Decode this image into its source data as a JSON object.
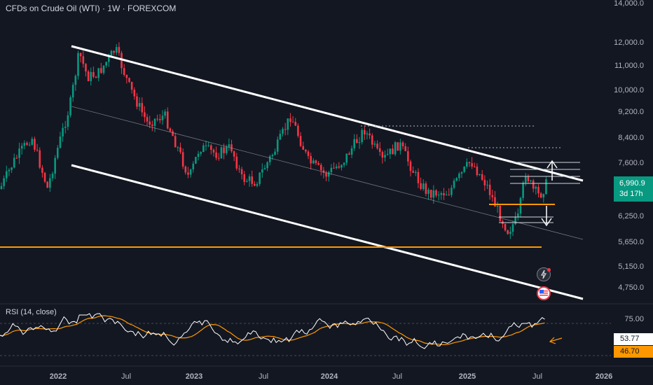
{
  "header": {
    "symbol_title": "CFDs on Crude Oil (WTI) · 1W · FOREXCOM"
  },
  "price_scale": {
    "labels": [
      "14,000.0",
      "12,000.0",
      "11,000.0",
      "10,000.0",
      "9,200.0",
      "8,400.0",
      "7,600.0",
      "6,250.0",
      "5,650.0",
      "5,150.0",
      "4,750.0"
    ],
    "values": [
      14000,
      12000,
      11000,
      10000,
      9200,
      8400,
      7600,
      6250,
      5650,
      5150,
      4750
    ]
  },
  "last_price": {
    "value": "6,990.9",
    "countdown": "3d 17h"
  },
  "rsi": {
    "label": "RSI (14, close)",
    "scale_label": "75.00",
    "rsi_value": "53.77",
    "ma_value": "46.70"
  },
  "time_axis": {
    "labels": [
      "2022",
      "Jul",
      "2023",
      "Jul",
      "2024",
      "Jul",
      "2025",
      "Jul",
      "2026"
    ]
  },
  "colors": {
    "background": "#131722",
    "up": "#089981",
    "down": "#f23645",
    "channel": "#ffffff",
    "support": "#ff9800",
    "rsi_line": "#ffffff",
    "rsi_ma": "#ff9800"
  },
  "icons": [
    "flash-icon",
    "us-flag-icon"
  ]
}
